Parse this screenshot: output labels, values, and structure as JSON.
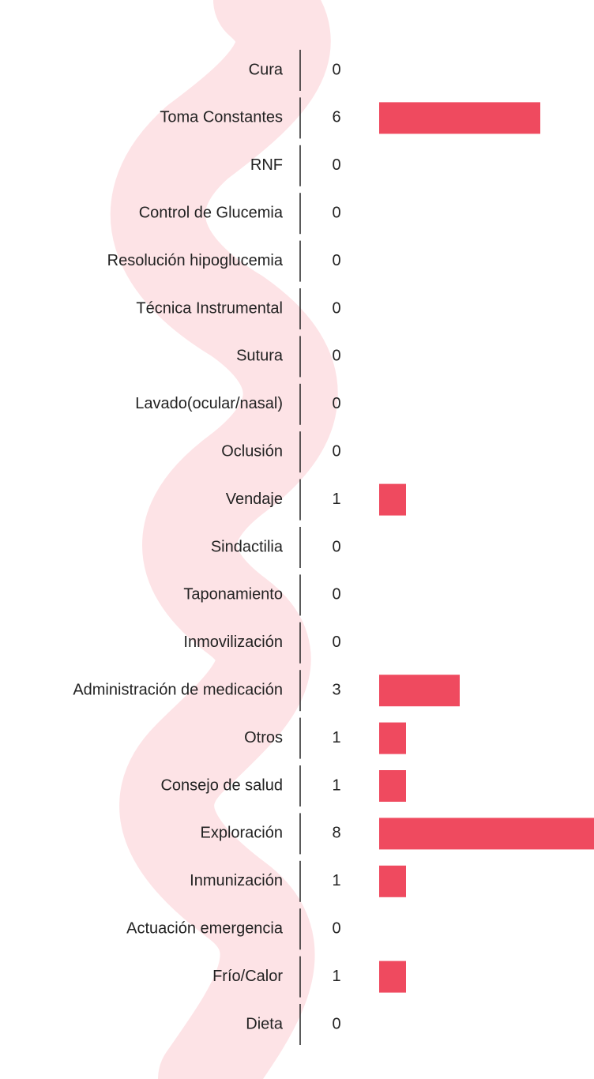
{
  "chart_data": {
    "type": "bar",
    "orientation": "horizontal",
    "categories": [
      "Cura",
      "Toma Constantes",
      "RNF",
      "Control de Glucemia",
      "Resolución hipoglucemia",
      "Técnica Instrumental",
      "Sutura",
      "Lavado(ocular/nasal)",
      "Oclusión",
      "Vendaje",
      "Sindactilia",
      "Taponamiento",
      "Inmovilización",
      "Administración de medicación",
      "Otros",
      "Consejo de salud",
      "Exploración",
      "Inmunización",
      "Actuación emergencia",
      "Frío/Calor",
      "Dieta"
    ],
    "values": [
      0,
      6,
      0,
      0,
      0,
      0,
      0,
      0,
      0,
      1,
      0,
      0,
      0,
      3,
      1,
      1,
      8,
      1,
      0,
      1,
      0
    ],
    "color": "#ef4a5f"
  }
}
